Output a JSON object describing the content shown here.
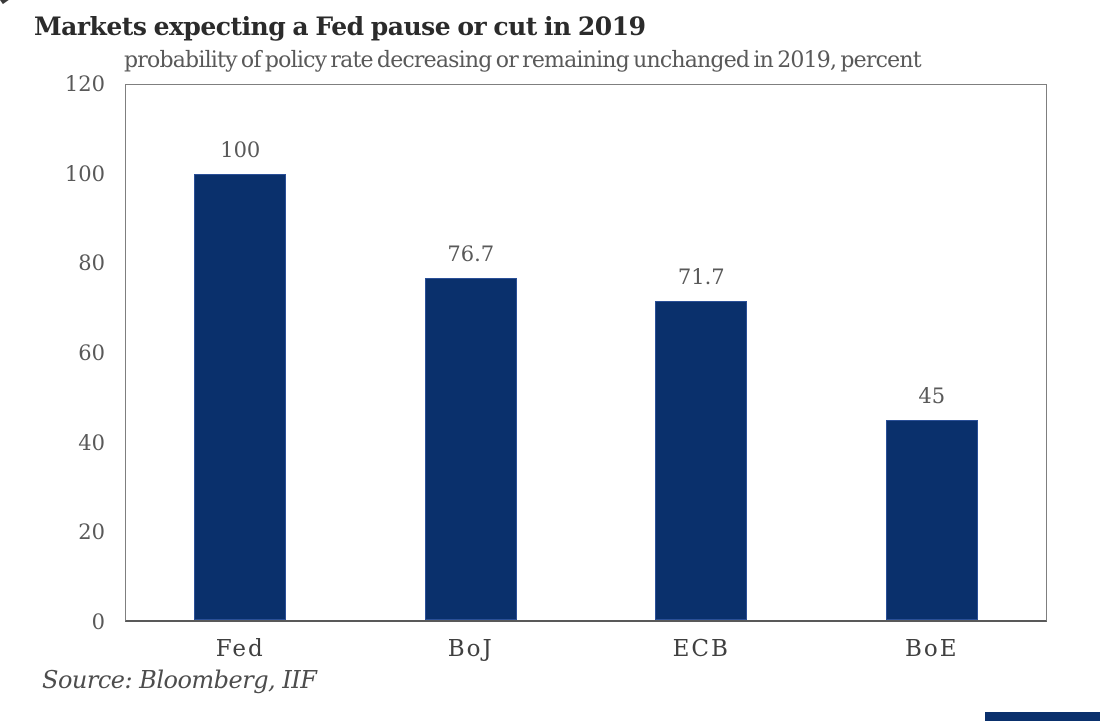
{
  "chart_data": {
    "type": "bar",
    "title": "Markets expecting a Fed pause or cut in 2019",
    "subtitle": "probability of policy rate decreasing or remaining unchanged in 2019, percent",
    "categories": [
      "Fed",
      "BoJ",
      "ECB",
      "BoE"
    ],
    "values": [
      100,
      76.7,
      71.7,
      45
    ],
    "value_labels": [
      "100",
      "76.7",
      "71.7",
      "45"
    ],
    "xlabel": "",
    "ylabel": "",
    "ylim": [
      0,
      120
    ],
    "yticks": [
      "0",
      "20",
      "40",
      "60",
      "80",
      "100",
      "120"
    ],
    "grid": false,
    "legend_position": "none",
    "bar_color": "#0a306c",
    "accent_color": "#0a306c",
    "source": "Source: Bloomberg, IIF"
  }
}
